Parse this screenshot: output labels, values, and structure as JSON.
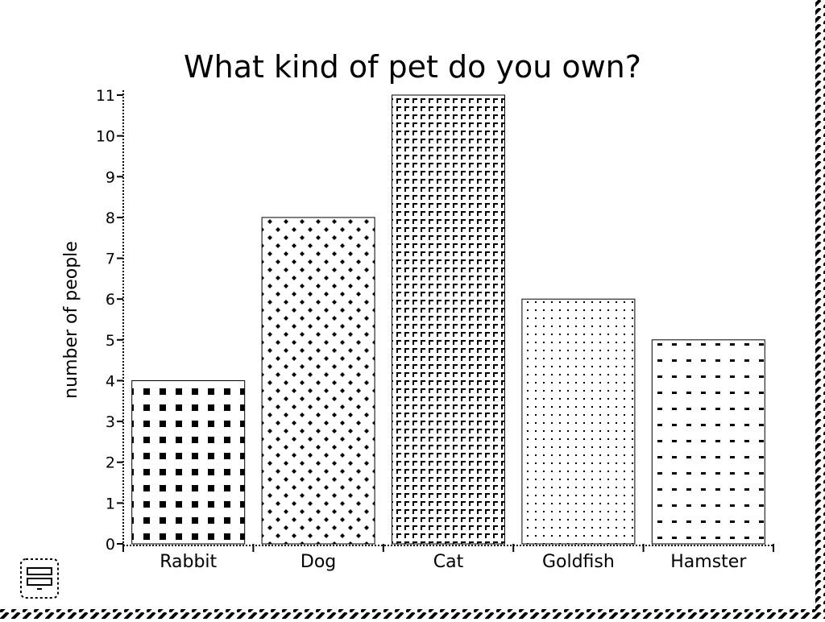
{
  "chart_data": {
    "type": "bar",
    "title": "What kind of pet do you own?",
    "ylabel": "number of people",
    "xlabel": "",
    "categories": [
      "Rabbit",
      "Dog",
      "Cat",
      "Goldfish",
      "Hamster"
    ],
    "values": [
      4,
      8,
      11,
      6,
      5
    ],
    "ylim": [
      0,
      11
    ],
    "yticks": [
      0,
      1,
      2,
      3,
      4,
      5,
      6,
      7,
      8,
      9,
      10,
      11
    ],
    "grid": false,
    "legend": "none",
    "bar_patterns": [
      "squares",
      "diamonds",
      "grid",
      "dots",
      "dashes"
    ],
    "bar_color": "#000000"
  },
  "ui": {
    "icon": "window-icon"
  }
}
